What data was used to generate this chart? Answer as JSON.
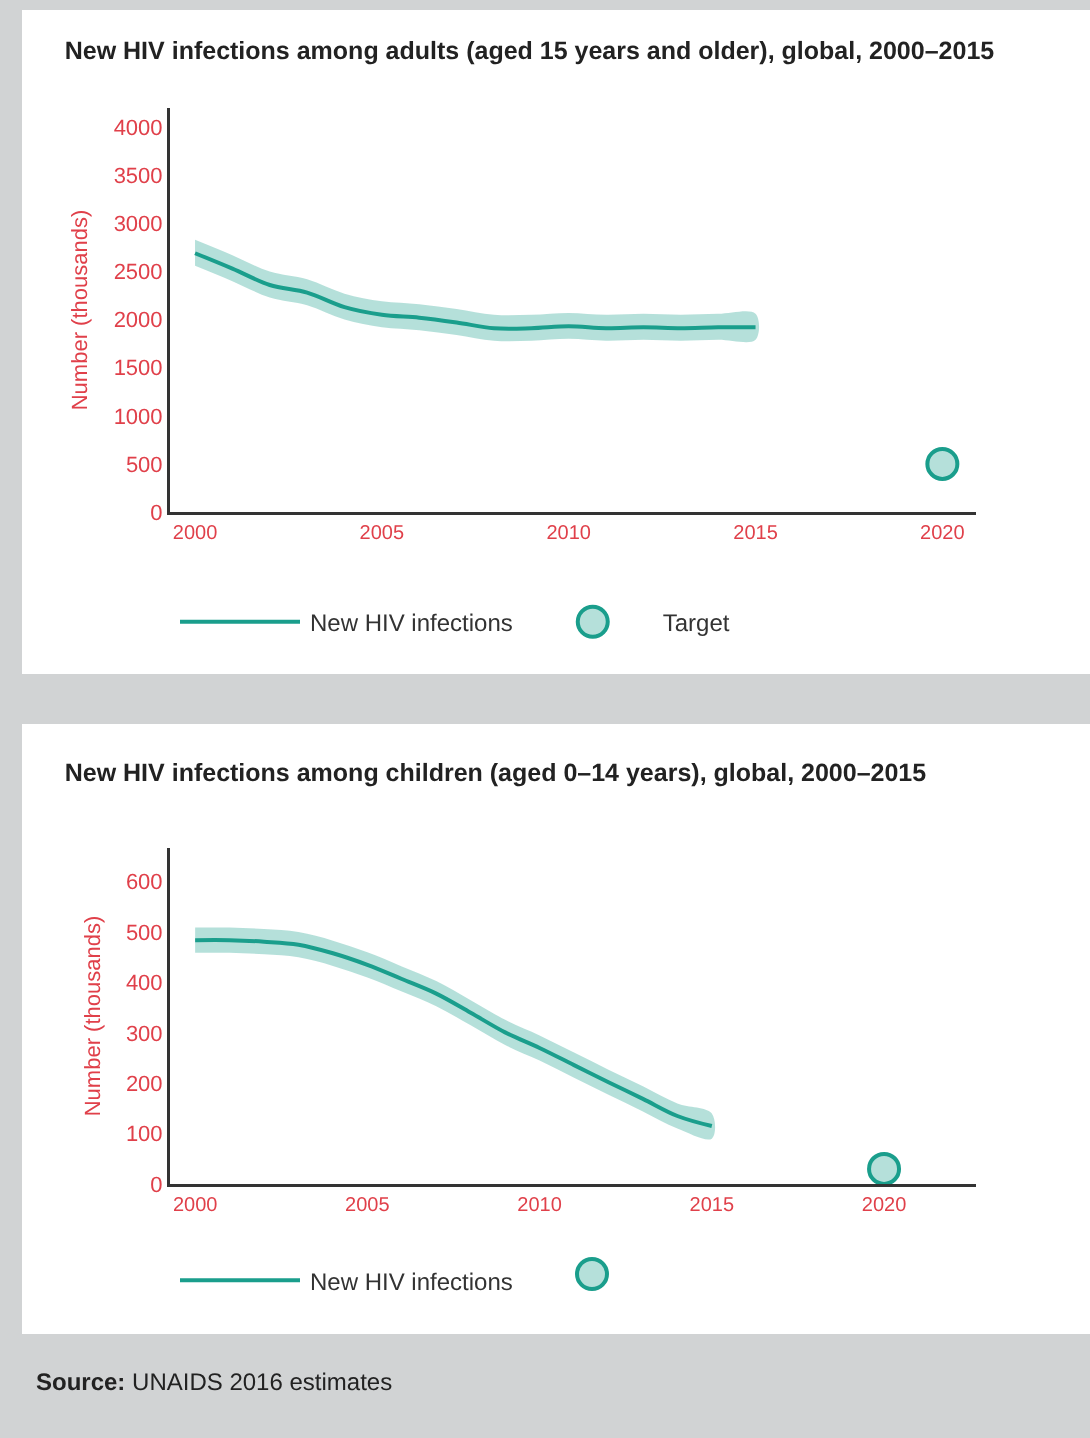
{
  "chart_data": [
    {
      "type": "line",
      "title": "New HIV infections among adults (aged 15 years and older), global, 2000–2015",
      "ylabel": "Number (thousands)",
      "xlim": [
        1999.33,
        2020.9
      ],
      "xticks": [
        2000,
        2005,
        2010,
        2015,
        2020
      ],
      "ylim": [
        0,
        4200
      ],
      "yticks": [
        0,
        500,
        1000,
        1500,
        2000,
        2500,
        3000,
        3500,
        4000
      ],
      "grid": false,
      "legend": "bottom",
      "series": [
        {
          "name": "New HIV infections",
          "color": "#1a9e8c",
          "x": [
            2000,
            2001,
            2002,
            2003,
            2004,
            2005,
            2006,
            2007,
            2008,
            2009,
            2010,
            2011,
            2012,
            2013,
            2014,
            2015
          ],
          "values": [
            2690,
            2530,
            2360,
            2280,
            2130,
            2050,
            2020,
            1970,
            1910,
            1910,
            1930,
            1910,
            1920,
            1910,
            1920,
            1920
          ],
          "lower": [
            2560,
            2400,
            2230,
            2150,
            2000,
            1920,
            1890,
            1840,
            1780,
            1780,
            1800,
            1780,
            1790,
            1780,
            1790,
            1790
          ],
          "upper": [
            2830,
            2670,
            2500,
            2420,
            2270,
            2190,
            2160,
            2110,
            2050,
            2050,
            2070,
            2050,
            2060,
            2050,
            2060,
            2060
          ]
        },
        {
          "name": "Target",
          "type": "scatter",
          "color": "#1a9e8c",
          "marker": "circle",
          "x": [
            2020
          ],
          "values": [
            500
          ]
        }
      ]
    },
    {
      "type": "line",
      "title": "New HIV infections among children (aged 0–14 years), global, 2000–2015",
      "ylabel": "Number (thousands)",
      "xlim": [
        1999.27,
        2022.67
      ],
      "xticks": [
        2000,
        2005,
        2010,
        2015,
        2020
      ],
      "ylim": [
        0,
        667
      ],
      "yticks": [
        0,
        100,
        200,
        300,
        400,
        500,
        600
      ],
      "grid": false,
      "legend": "bottom",
      "annotations": [
        "Source: UNAIDS 2016 estimates"
      ],
      "series": [
        {
          "name": "New HIV infections",
          "color": "#1a9e8c",
          "x": [
            2000,
            2001,
            2002,
            2003,
            2004,
            2005,
            2006,
            2007,
            2008,
            2009,
            2010,
            2011,
            2012,
            2013,
            2014,
            2015
          ],
          "values": [
            484,
            484,
            481,
            475,
            458,
            435,
            407,
            378,
            340,
            301,
            270,
            236,
            202,
            169,
            135,
            115
          ],
          "lower": [
            459,
            459,
            456,
            450,
            433,
            410,
            382,
            353,
            315,
            276,
            245,
            211,
            177,
            144,
            110,
            90
          ],
          "upper": [
            509,
            509,
            506,
            500,
            483,
            460,
            432,
            403,
            365,
            326,
            295,
            261,
            227,
            194,
            160,
            140
          ]
        },
        {
          "type": "scatter",
          "color": "#1a9e8c",
          "marker": "circle",
          "x": [
            2020
          ],
          "values": [
            30
          ]
        }
      ]
    }
  ]
}
